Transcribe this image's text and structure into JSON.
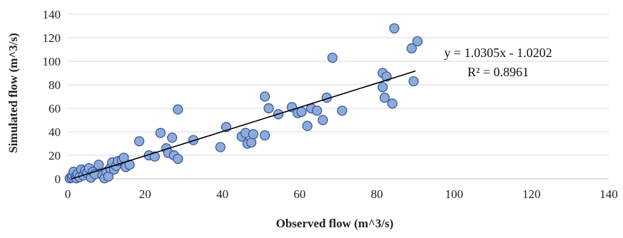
{
  "chart_data": {
    "type": "scatter",
    "title": "",
    "xlabel": "Observed flow (m^3/s)",
    "ylabel": "Simulated flow (m^3/s)",
    "xlim": [
      0,
      140
    ],
    "ylim": [
      0,
      140
    ],
    "x_ticks": [
      "0",
      "20",
      "40",
      "60",
      "80",
      "100",
      "120",
      "140"
    ],
    "y_ticks": [
      "0",
      "20",
      "40",
      "60",
      "80",
      "100",
      "120",
      "140"
    ],
    "grid": "horizontal",
    "legend": "none",
    "marker_fill": "#8eaadb",
    "marker_stroke": "#2f5597",
    "trendline": {
      "slope": 1.0305,
      "intercept": -1.0202,
      "x_range": [
        1,
        90
      ],
      "equation": "y = 1.0305x - 1.0202",
      "r_squared": "R² = 0.8961",
      "color": "#000000"
    },
    "series": [
      {
        "points": [
          [
            0.5,
            0.5
          ],
          [
            1,
            1
          ],
          [
            1.2,
            3
          ],
          [
            1.5,
            6
          ],
          [
            2,
            2
          ],
          [
            2.2,
            0.5
          ],
          [
            2.5,
            4
          ],
          [
            3,
            1.5
          ],
          [
            3.5,
            8
          ],
          [
            4,
            3
          ],
          [
            4.5,
            7
          ],
          [
            5,
            5
          ],
          [
            5.5,
            9
          ],
          [
            6,
            1
          ],
          [
            6.5,
            6
          ],
          [
            7,
            4
          ],
          [
            8,
            12
          ],
          [
            9,
            3
          ],
          [
            9.5,
            0.5
          ],
          [
            10,
            6
          ],
          [
            10.5,
            2
          ],
          [
            11,
            9
          ],
          [
            11.5,
            14
          ],
          [
            12,
            8
          ],
          [
            12.5,
            11
          ],
          [
            13,
            15
          ],
          [
            14,
            16
          ],
          [
            14.5,
            18
          ],
          [
            15,
            10
          ],
          [
            16,
            12
          ],
          [
            18.5,
            32
          ],
          [
            21,
            20
          ],
          [
            22.5,
            19
          ],
          [
            24,
            39
          ],
          [
            25.5,
            26
          ],
          [
            26,
            22
          ],
          [
            27,
            35
          ],
          [
            27.5,
            20
          ],
          [
            28.5,
            17
          ],
          [
            28.5,
            59
          ],
          [
            32.5,
            33
          ],
          [
            39.5,
            27
          ],
          [
            41,
            44
          ],
          [
            45,
            36
          ],
          [
            46,
            39
          ],
          [
            46.5,
            30
          ],
          [
            47.5,
            31
          ],
          [
            48,
            38
          ],
          [
            51,
            70
          ],
          [
            51,
            37
          ],
          [
            52,
            60
          ],
          [
            54.5,
            55
          ],
          [
            58,
            61
          ],
          [
            59.5,
            56
          ],
          [
            60.5,
            57
          ],
          [
            62,
            45
          ],
          [
            63,
            60
          ],
          [
            64.5,
            58
          ],
          [
            66,
            50
          ],
          [
            67,
            69
          ],
          [
            68.5,
            103
          ],
          [
            71,
            58
          ],
          [
            81.5,
            90
          ],
          [
            81.5,
            78
          ],
          [
            82,
            69
          ],
          [
            82.5,
            87
          ],
          [
            84,
            64
          ],
          [
            84.5,
            128
          ],
          [
            89,
            111
          ],
          [
            89.5,
            83
          ],
          [
            90.5,
            117
          ]
        ]
      }
    ]
  }
}
